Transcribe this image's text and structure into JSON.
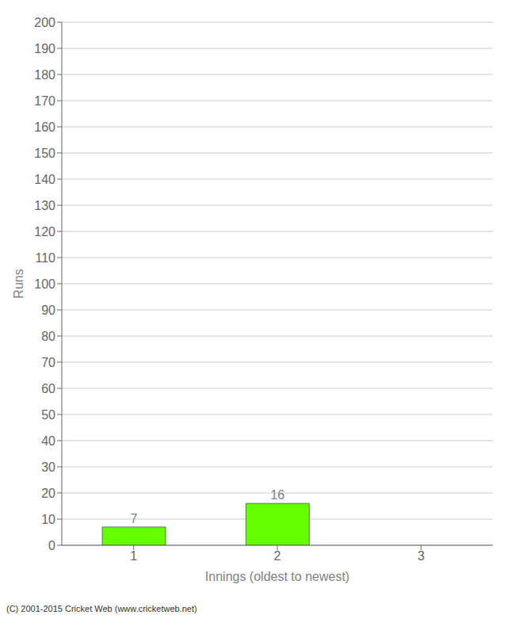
{
  "chart_data": {
    "type": "bar",
    "categories": [
      1,
      2,
      3
    ],
    "values": [
      7,
      16,
      0
    ],
    "color": "#66ff00",
    "xlabel": "Innings (oldest to newest)",
    "ylabel": "Runs",
    "ylim": [
      0,
      200
    ],
    "yticks": [
      0,
      10,
      20,
      30,
      40,
      50,
      60,
      70,
      80,
      90,
      100,
      110,
      120,
      130,
      140,
      150,
      160,
      170,
      180,
      190,
      200
    ],
    "grid": true,
    "data_labels": true,
    "annotations": [
      "(C) 2001-2015 Cricket Web (www.cricketweb.net)"
    ]
  }
}
